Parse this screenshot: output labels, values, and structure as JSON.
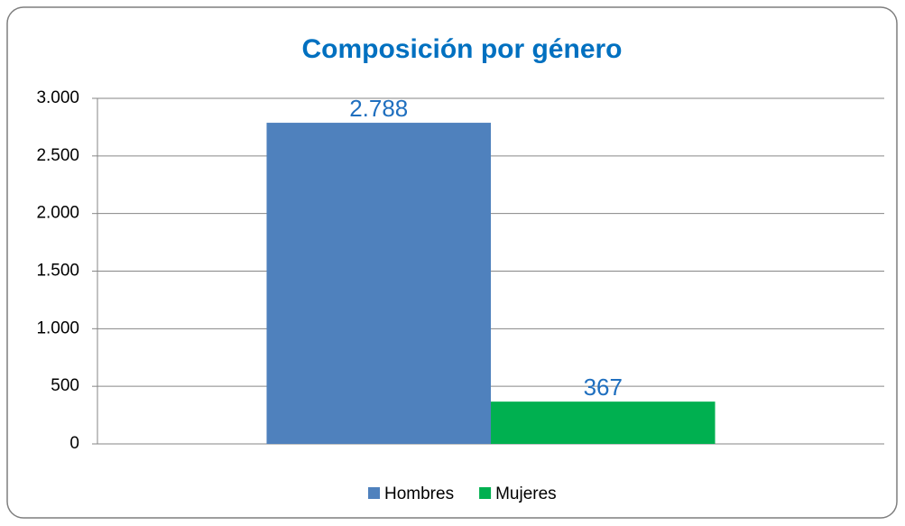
{
  "chart_data": {
    "type": "bar",
    "title": "Composición por género",
    "categories": [
      null
    ],
    "series": [
      {
        "name": "Hombres",
        "color": "#4f81bd",
        "values": [
          2788
        ],
        "value_labels": [
          "2.788"
        ]
      },
      {
        "name": "Mujeres",
        "color": "#00b050",
        "values": [
          367
        ]
      }
    ],
    "ylim": [
      0,
      3000
    ],
    "yticks": [
      0,
      500,
      {
        "value": 1000,
        "label": "1.000"
      },
      {
        "value": 1500,
        "label": "1.500"
      },
      {
        "value": 2000,
        "label": "2.000"
      },
      {
        "value": 2500,
        "label": "2.500"
      },
      {
        "value": 3000,
        "label": "3.000"
      }
    ],
    "grid": true,
    "legend": "bottom"
  }
}
